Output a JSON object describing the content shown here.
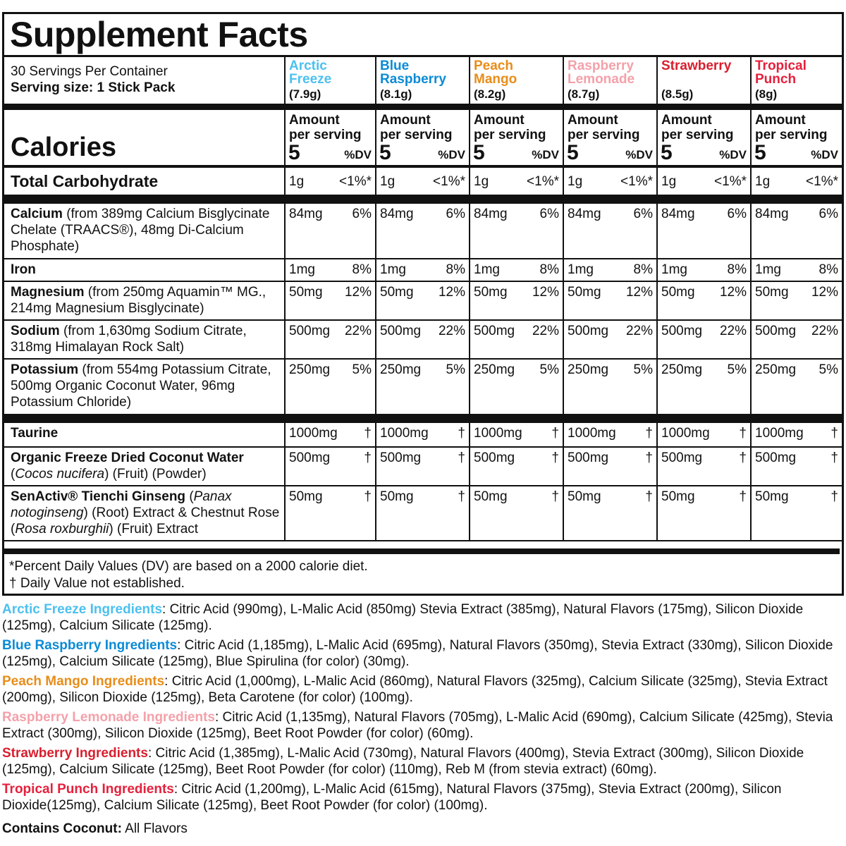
{
  "title": "Supplement Facts",
  "servings_per_container": "30 Servings Per Container",
  "serving_size": "Serving size: 1 Stick Pack",
  "calories_label": "Calories",
  "amount_label_1": "Amount",
  "amount_label_2": "per serving",
  "dv_label": "%DV",
  "flavors": [
    {
      "name1": "Arctic",
      "name2": "Freeze",
      "weight": "(7.9g)",
      "calories": "5",
      "color": "#4cc0ef"
    },
    {
      "name1": "Blue",
      "name2": "Raspberry",
      "weight": "(8.1g)",
      "calories": "5",
      "color": "#0a8bd6"
    },
    {
      "name1": "Peach",
      "name2": "Mango",
      "weight": "(8.2g)",
      "calories": "5",
      "color": "#e88d1a"
    },
    {
      "name1": "Raspberry",
      "name2": "Lemonade",
      "weight": "(8.7g)",
      "calories": "5",
      "color": "#f4a1aa"
    },
    {
      "name1": "Strawberry",
      "name2": "",
      "weight": "(8.5g)",
      "calories": "5",
      "color": "#d81f2e"
    },
    {
      "name1": "Tropical",
      "name2": "Punch",
      "weight": "(8g)",
      "calories": "5",
      "color": "#e6203c"
    }
  ],
  "rows": [
    {
      "label": [
        {
          "t": "Total Carbohydrate",
          "b": true
        }
      ],
      "amount": "1g",
      "dv": "<1%*",
      "big": true,
      "h": 40,
      "after": "bar"
    },
    {
      "label": [
        {
          "t": "Calcium",
          "b": true
        },
        {
          "t": " (from 389mg Calcium Bisglycinate Chelate (TRAACS®), 48mg Di-Calcium Phosphate)"
        }
      ],
      "amount": "84mg",
      "dv": "6%",
      "h": 78
    },
    {
      "label": [
        {
          "t": "Iron",
          "b": true
        }
      ],
      "amount": "1mg",
      "dv": "8%",
      "h": 32
    },
    {
      "label": [
        {
          "t": "Magnesium",
          "b": true
        },
        {
          "t": " (from 250mg Aquamin™ MG., 214mg Magnesium Bisglycinate)"
        }
      ],
      "amount": "50mg",
      "dv": "12%",
      "h": 55
    },
    {
      "label": [
        {
          "t": "Sodium",
          "b": true
        },
        {
          "t": " (from 1,630mg Sodium Citrate, 318mg Himalayan Rock Salt)"
        }
      ],
      "amount": "500mg",
      "dv": "22%",
      "h": 55
    },
    {
      "label": [
        {
          "t": "Potassium",
          "b": true
        },
        {
          "t": " (from 554mg Potassium Citrate, 500mg Organic Coconut Water, 96mg Potassium Chloride)"
        }
      ],
      "amount": "250mg",
      "dv": "5%",
      "h": 79,
      "after": "bar"
    },
    {
      "label": [
        {
          "t": "Taurine",
          "b": true
        }
      ],
      "amount": "1000mg",
      "dv": "†",
      "h": 34
    },
    {
      "label": [
        {
          "t": "Organic Freeze Dried Coconut Water",
          "b": true
        },
        {
          "t": " ("
        },
        {
          "t": "Cocos nucifera",
          "i": true
        },
        {
          "t": ") (Fruit) (Powder)"
        }
      ],
      "amount": "500mg",
      "dv": "†",
      "h": 55
    },
    {
      "label": [
        {
          "t": "SenActiv® Tienchi Ginseng",
          "b": true
        },
        {
          "t": " ("
        },
        {
          "t": "Panax notoginseng",
          "i": true
        },
        {
          "t": ") (Root) Extract & Chestnut Rose ("
        },
        {
          "t": "Rosa roxburghii",
          "i": true
        },
        {
          "t": ") (Fruit) Extract"
        }
      ],
      "amount": "50mg",
      "dv": "†",
      "h": 78
    }
  ],
  "footnote_1": "*Percent Daily Values (DV) are based on a 2000 calorie diet.",
  "footnote_2": "† Daily Value not established.",
  "ingredients": [
    {
      "name": "Arctic Freeze Ingredients",
      "text": ": Citric Acid (990mg), L-Malic Acid (850mg) Stevia Extract (385mg), Natural Flavors (175mg), Silicon Dioxide (125mg), Calcium Silicate (125mg).",
      "color": "#4cc0ef"
    },
    {
      "name": "Blue Raspberry Ingredients",
      "text": ": Citric Acid (1,185mg), L-Malic Acid (695mg), Natural Flavors (350mg), Stevia Extract (330mg), Silicon Dioxide (125mg), Calcium Silicate (125mg), Blue Spirulina (for color) (30mg).",
      "color": "#0a8bd6"
    },
    {
      "name": "Peach Mango Ingredients",
      "text": ":  Citric Acid (1,000mg), L-Malic Acid (860mg), Natural Flavors (325mg), Calcium Silicate (325mg), Stevia Extract (200mg), Silicon Dioxide (125mg), Beta Carotene (for color) (100mg).",
      "color": "#e88d1a"
    },
    {
      "name": "Raspberry Lemonade Ingredients",
      "text": ": Citric Acid (1,135mg), Natural Flavors (705mg), L-Malic Acid (690mg), Calcium Silicate (425mg), Stevia Extract (300mg), Silicon Dioxide (125mg), Beet Root Powder (for color) (60mg).",
      "color": "#f4a1aa"
    },
    {
      "name": "Strawberry Ingredients",
      "text": ":  Citric Acid (1,385mg), L-Malic Acid (730mg), Natural Flavors (400mg), Stevia Extract (300mg), Silicon Dioxide (125mg), Calcium Silicate (125mg), Beet Root Powder (for color) (110mg), Reb M (from stevia extract) (60mg).",
      "color": "#d81f2e"
    },
    {
      "name": "Tropical Punch Ingredients",
      "text": ":  Citric Acid (1,200mg), L-Malic Acid (615mg), Natural Flavors (375mg), Stevia Extract (200mg), Silicon Dioxide(125mg), Calcium Silicate (125mg), Beet Root Powder (for color) (100mg).",
      "color": "#e6203c"
    }
  ],
  "contains_label": "Contains Coconut:",
  "contains_value": " All Flavors"
}
